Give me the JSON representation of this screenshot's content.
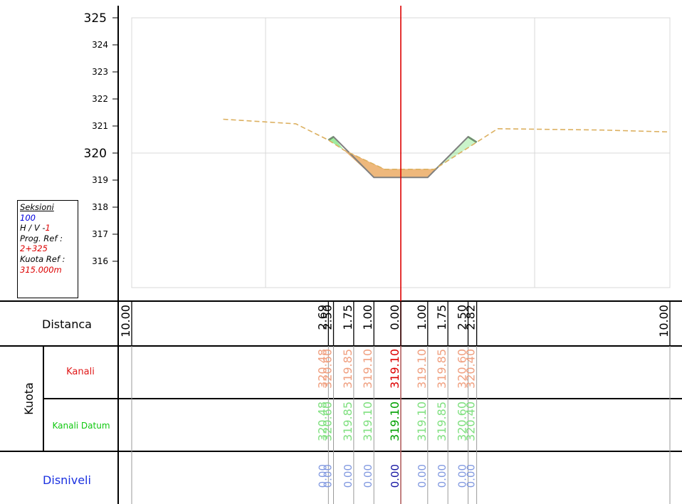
{
  "info_box": {
    "title": "Seksioni",
    "section_number": "100",
    "hv_label": "H / V -",
    "hv_value": "1",
    "prog_label": "Prog. Ref :",
    "prog_value": "2+325",
    "kuota_label": "Kuota Ref :",
    "kuota_value": "315.000m"
  },
  "bands": {
    "distanca_label": "Distanca",
    "kuota_label": "Kuota",
    "kanali_label": "Kanali",
    "kanali_datum_label": "Kanali Datum",
    "disniveli_label": "Disniveli"
  },
  "colors": {
    "axis_line": "#dd0000",
    "kanali_text": "#f0a080",
    "kanali_axis_text": "#dd0000",
    "datum_text": "#80e080",
    "datum_axis_text": "#00a000",
    "disniveli_text": "#8098e0",
    "disniveli_axis_text": "#1010a0",
    "disniveli_label": "#1a30e0",
    "ground_line": "#dcb060",
    "channel_fill": "#e8a050",
    "green_fill": "#50d850"
  },
  "chart_data": {
    "type": "cross-section",
    "title": "",
    "y_axis": {
      "range": [
        315,
        325
      ],
      "ticks": [
        {
          "value": 325,
          "label": "325",
          "major": true
        },
        {
          "value": 324,
          "label": "324",
          "major": false
        },
        {
          "value": 323,
          "label": "323",
          "major": false
        },
        {
          "value": 322,
          "label": "322",
          "major": false
        },
        {
          "value": 321,
          "label": "321",
          "major": false
        },
        {
          "value": 320,
          "label": "320",
          "major": true
        },
        {
          "value": 319,
          "label": "319",
          "major": false
        },
        {
          "value": 318,
          "label": "318",
          "major": false
        },
        {
          "value": 317,
          "label": "317",
          "major": false
        },
        {
          "value": 316,
          "label": "316",
          "major": false
        }
      ]
    },
    "x_axis": {
      "range": [
        -10,
        10
      ],
      "center_line": 0
    },
    "ground_line": [
      {
        "x": -6.6,
        "y": 321.25
      },
      {
        "x": -3.9,
        "y": 321.08
      },
      {
        "x": -2.69,
        "y": 320.48
      },
      {
        "x": -2.1,
        "y": 320.1
      },
      {
        "x": -0.6,
        "y": 319.4
      },
      {
        "x": 1.25,
        "y": 319.4
      },
      {
        "x": 2.82,
        "y": 320.4
      },
      {
        "x": 3.6,
        "y": 320.9
      },
      {
        "x": 7.5,
        "y": 320.85
      },
      {
        "x": 10.0,
        "y": 320.78
      }
    ],
    "design_section": [
      {
        "x": -2.69,
        "y": 320.48
      },
      {
        "x": -2.5,
        "y": 320.6
      },
      {
        "x": -1.0,
        "y": 319.1
      },
      {
        "x": 1.0,
        "y": 319.1
      },
      {
        "x": 2.5,
        "y": 320.6
      },
      {
        "x": 2.82,
        "y": 320.4
      }
    ],
    "distances": [
      {
        "x": -10.0,
        "label": "10.00"
      },
      {
        "x": -2.69,
        "label": "2.69"
      },
      {
        "x": -2.5,
        "label": "2.50"
      },
      {
        "x": -1.75,
        "label": "1.75"
      },
      {
        "x": -1.0,
        "label": "1.00"
      },
      {
        "x": 0.0,
        "label": "0.00"
      },
      {
        "x": 1.0,
        "label": "1.00"
      },
      {
        "x": 1.75,
        "label": "1.75"
      },
      {
        "x": 2.5,
        "label": "2.50"
      },
      {
        "x": 2.82,
        "label": "2.82"
      },
      {
        "x": 10.0,
        "label": "10.00"
      }
    ],
    "kanali": [
      {
        "x": -2.69,
        "label": "320.48"
      },
      {
        "x": -2.5,
        "label": "320.60"
      },
      {
        "x": -1.75,
        "label": "319.85"
      },
      {
        "x": -1.0,
        "label": "319.10"
      },
      {
        "x": 0.0,
        "label": "319.10"
      },
      {
        "x": 1.0,
        "label": "319.10"
      },
      {
        "x": 1.75,
        "label": "319.85"
      },
      {
        "x": 2.5,
        "label": "320.60"
      },
      {
        "x": 2.82,
        "label": "320.40"
      }
    ],
    "kanali_datum": [
      {
        "x": -2.69,
        "label": "320.48"
      },
      {
        "x": -2.5,
        "label": "320.60"
      },
      {
        "x": -1.75,
        "label": "319.85"
      },
      {
        "x": -1.0,
        "label": "319.10"
      },
      {
        "x": 0.0,
        "label": "319.10"
      },
      {
        "x": 1.0,
        "label": "319.10"
      },
      {
        "x": 1.75,
        "label": "319.85"
      },
      {
        "x": 2.5,
        "label": "320.60"
      },
      {
        "x": 2.82,
        "label": "320.40"
      }
    ],
    "disniveli": [
      {
        "x": -2.69,
        "label": "0.00"
      },
      {
        "x": -2.5,
        "label": "0.00"
      },
      {
        "x": -1.75,
        "label": "0.00"
      },
      {
        "x": -1.0,
        "label": "0.00"
      },
      {
        "x": 0.0,
        "label": "0.00"
      },
      {
        "x": 1.0,
        "label": "0.00"
      },
      {
        "x": 1.75,
        "label": "0.00"
      },
      {
        "x": 2.5,
        "label": "0.00"
      },
      {
        "x": 2.82,
        "label": "0.00"
      }
    ]
  }
}
